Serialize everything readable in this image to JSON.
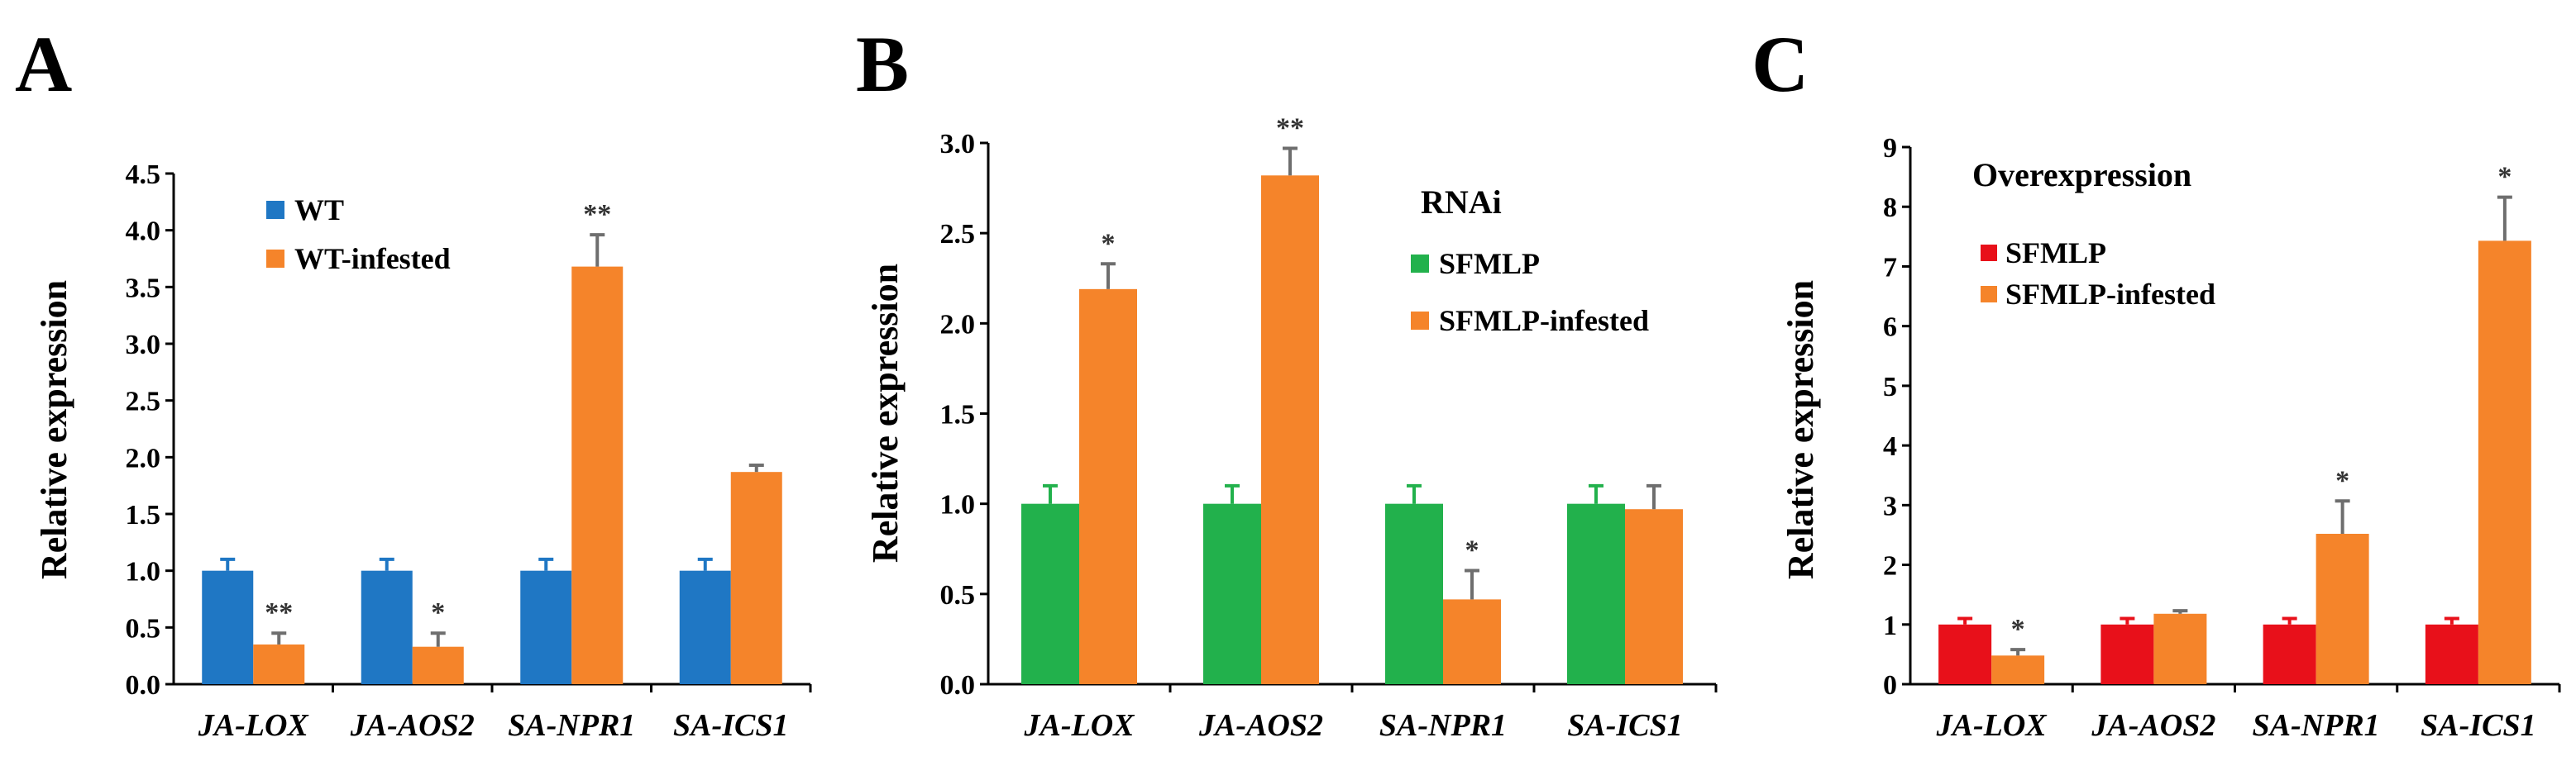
{
  "chart_data": [
    {
      "panel_label": "A",
      "type": "bar",
      "ylabel": "Relative expression",
      "xlabel": "",
      "ylim": [
        0,
        4.5
      ],
      "yticks": [
        "0.0",
        "0.5",
        "1.0",
        "1.5",
        "2.0",
        "2.5",
        "3.0",
        "3.5",
        "4.0",
        "4.5"
      ],
      "ytick_values": [
        0,
        0.5,
        1.0,
        1.5,
        2.0,
        2.5,
        3.0,
        3.5,
        4.0,
        4.5
      ],
      "categories": [
        "JA-LOX",
        "JA-AOS2",
        "SA-NPR1",
        "SA-ICS1"
      ],
      "legend_title": "",
      "series": [
        {
          "name": "WT",
          "color": "#1f77c4",
          "values": [
            1.0,
            1.0,
            1.0,
            1.0
          ],
          "errors": [
            0.1,
            0.1,
            0.1,
            0.1
          ],
          "significance": [
            "",
            "",
            "",
            ""
          ]
        },
        {
          "name": "WT-infested",
          "color": "#f5842a",
          "values": [
            0.35,
            0.33,
            3.68,
            1.87
          ],
          "errors": [
            0.1,
            0.12,
            0.28,
            0.06
          ],
          "significance": [
            "**",
            "*",
            "**",
            ""
          ]
        }
      ]
    },
    {
      "panel_label": "B",
      "type": "bar",
      "ylabel": "Relative expression",
      "xlabel": "",
      "ylim": [
        0,
        3.0
      ],
      "yticks": [
        "0.0",
        "0.5",
        "1.0",
        "1.5",
        "2.0",
        "2.5",
        "3.0"
      ],
      "ytick_values": [
        0,
        0.5,
        1.0,
        1.5,
        2.0,
        2.5,
        3.0
      ],
      "categories": [
        "JA-LOX",
        "JA-AOS2",
        "SA-NPR1",
        "SA-ICS1"
      ],
      "legend_title": "RNAi",
      "series": [
        {
          "name": "SFMLP",
          "color": "#22b14c",
          "values": [
            1.0,
            1.0,
            1.0,
            1.0
          ],
          "errors": [
            0.1,
            0.1,
            0.1,
            0.1
          ],
          "significance": [
            "",
            "",
            "",
            ""
          ]
        },
        {
          "name": "SFMLP-infested",
          "color": "#f5842a",
          "values": [
            2.19,
            2.82,
            0.47,
            0.97
          ],
          "errors": [
            0.14,
            0.15,
            0.16,
            0.13
          ],
          "significance": [
            "*",
            "**",
            "*",
            ""
          ]
        }
      ]
    },
    {
      "panel_label": "C",
      "type": "bar",
      "ylabel": "Relative expression",
      "xlabel": "",
      "ylim": [
        0,
        9
      ],
      "yticks": [
        "0",
        "1",
        "2",
        "3",
        "4",
        "5",
        "6",
        "7",
        "8",
        "9"
      ],
      "ytick_values": [
        0,
        1,
        2,
        3,
        4,
        5,
        6,
        7,
        8,
        9
      ],
      "categories": [
        "JA-LOX",
        "JA-AOS2",
        "SA-NPR1",
        "SA-ICS1"
      ],
      "legend_title": "Overexpression",
      "series": [
        {
          "name": "SFMLP",
          "color": "#e8101a",
          "values": [
            1.0,
            1.0,
            1.0,
            1.0
          ],
          "errors": [
            0.1,
            0.1,
            0.1,
            0.1
          ],
          "significance": [
            "",
            "",
            "",
            ""
          ]
        },
        {
          "name": "SFMLP-infested",
          "color": "#f5842a",
          "values": [
            0.48,
            1.18,
            2.52,
            7.43
          ],
          "errors": [
            0.1,
            0.05,
            0.55,
            0.73
          ],
          "significance": [
            "*",
            "",
            "*",
            "*"
          ]
        }
      ]
    }
  ]
}
